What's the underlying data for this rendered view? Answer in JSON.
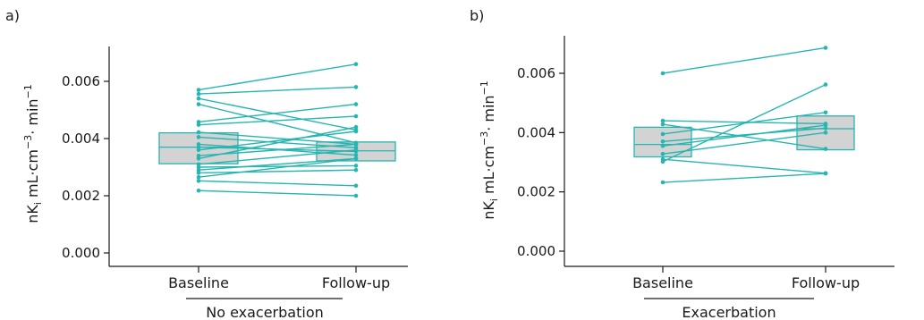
{
  "colors": {
    "line": "#26b5b0",
    "box_fill": "#d3d3d3",
    "box_stroke": "#26b5b0",
    "axis": "#1a1a1a"
  },
  "chart_data": [
    {
      "type": "box",
      "panel_label": "a)",
      "group_label": "No exacerbation",
      "ylabel": "nK",
      "ylabel_sub": "i",
      "ylabel_rest": " mL·cm",
      "ylabel_sup1": "−3",
      "ylabel_mid": "· min",
      "ylabel_sup2": "−1",
      "categories": [
        "Baseline",
        "Follow-up"
      ],
      "ylim": [
        -0.0002,
        0.0071
      ],
      "yticks": [
        "0.000",
        "0.002",
        "0.004",
        "0.006"
      ],
      "ytick_values": [
        0,
        0.002,
        0.004,
        0.006
      ],
      "boxes": [
        {
          "q1": 0.00312,
          "median": 0.0037,
          "q3": 0.0042
        },
        {
          "q1": 0.00322,
          "median": 0.00357,
          "q3": 0.00388
        }
      ],
      "pairs": [
        [
          0.0057,
          0.0066
        ],
        [
          0.00556,
          0.0058
        ],
        [
          0.0054,
          0.0043
        ],
        [
          0.0052,
          0.00385
        ],
        [
          0.00458,
          0.0052
        ],
        [
          0.00448,
          0.00478
        ],
        [
          0.00422,
          0.0038
        ],
        [
          0.00405,
          0.00368
        ],
        [
          0.0038,
          0.00342
        ],
        [
          0.0037,
          0.00355
        ],
        [
          0.0036,
          0.00425
        ],
        [
          0.0034,
          0.0038
        ],
        [
          0.0033,
          0.0044
        ],
        [
          0.0031,
          0.0036
        ],
        [
          0.003,
          0.00305
        ],
        [
          0.0029,
          0.0033
        ],
        [
          0.0028,
          0.0029
        ],
        [
          0.00265,
          0.0033
        ],
        [
          0.00252,
          0.00235
        ],
        [
          0.00218,
          0.002
        ]
      ]
    },
    {
      "type": "box",
      "panel_label": "b)",
      "group_label": "Exacerbation",
      "ylabel": "nK",
      "ylabel_sub": "i",
      "ylabel_rest": " mL·cm",
      "ylabel_sup1": "−3",
      "ylabel_mid": "· min",
      "ylabel_sup2": "−1",
      "categories": [
        "Baseline",
        "Follow-up"
      ],
      "ylim": [
        -0.0002,
        0.0071
      ],
      "yticks": [
        "0.000",
        "0.002",
        "0.004",
        "0.006"
      ],
      "ytick_values": [
        0,
        0.002,
        0.004,
        0.006
      ],
      "boxes": [
        {
          "q1": 0.00318,
          "median": 0.0036,
          "q3": 0.00418
        },
        {
          "q1": 0.00342,
          "median": 0.00413,
          "q3": 0.00456
        }
      ],
      "pairs": [
        [
          0.006,
          0.00686
        ],
        [
          0.0044,
          0.0043
        ],
        [
          0.00428,
          0.00345
        ],
        [
          0.00395,
          0.00468
        ],
        [
          0.0037,
          0.00415
        ],
        [
          0.00355,
          0.00425
        ],
        [
          0.00328,
          0.004
        ],
        [
          0.0031,
          0.00263
        ],
        [
          0.00302,
          0.00562
        ],
        [
          0.00232,
          0.00262
        ]
      ]
    }
  ]
}
